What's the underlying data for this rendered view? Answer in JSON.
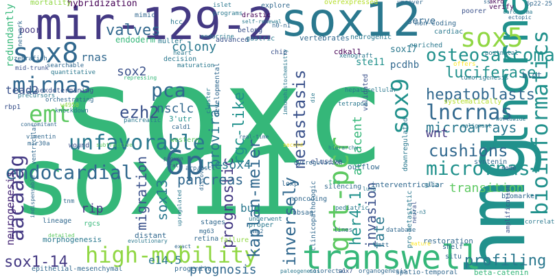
{
  "words": [
    {
      "text": "soxc",
      "color": "#35b779"
    },
    {
      "text": "sox11",
      "color": "#35b779"
    },
    {
      "text": "mir-129-2",
      "color": "#443983"
    },
    {
      "text": "sox12",
      "color": "#2a788e"
    },
    {
      "text": "hmg",
      "color": "#21918c"
    },
    {
      "text": "lncrna",
      "color": "#21918c"
    },
    {
      "text": "sox8",
      "color": "#31688e"
    },
    {
      "text": "sox5",
      "color": "#90d743"
    },
    {
      "text": "transwell",
      "color": "#35b779"
    },
    {
      "text": "high-mobility",
      "color": "#90d743"
    },
    {
      "text": "6p",
      "color": "#31688e"
    },
    {
      "text": "emt",
      "color": "#5ec962"
    },
    {
      "text": "unfavorable",
      "color": "#2a788e"
    },
    {
      "text": "aacaaag",
      "color": "#443983"
    },
    {
      "text": "mirnas",
      "color": "#31688e"
    },
    {
      "text": "osteosarcoma",
      "color": "#21918c"
    },
    {
      "text": "bioinformatics",
      "color": "#21918c"
    },
    {
      "text": "qrt-pcr",
      "color": "#5ec962"
    },
    {
      "text": "kaplan-meier",
      "color": "#31688e"
    },
    {
      "text": "lncrnas",
      "color": "#31688e"
    },
    {
      "text": "micrornas",
      "color": "#21918c"
    },
    {
      "text": "endocardial",
      "color": "#31688e"
    },
    {
      "text": "sox9",
      "color": "#21918c"
    },
    {
      "text": "metastasis",
      "color": "#3b528b"
    },
    {
      "text": "pca",
      "color": "#31688e"
    },
    {
      "text": "inversely",
      "color": "#31688e"
    },
    {
      "text": "sox1-14",
      "color": "#443983"
    },
    {
      "text": "cushions",
      "color": "#31688e"
    },
    {
      "text": "hepatoblasts",
      "color": "#31688e"
    },
    {
      "text": "ezh2",
      "color": "#3b528b"
    },
    {
      "text": "valves",
      "color": "#31688e"
    },
    {
      "text": "luciferase",
      "color": "#21918c"
    },
    {
      "text": "profiling",
      "color": "#2a788e"
    },
    {
      "text": "prognostic",
      "color": "#443983"
    },
    {
      "text": "rgc-like",
      "color": "#21918c"
    },
    {
      "text": "proviral",
      "color": "#2a788e"
    },
    {
      "text": "prognosis",
      "color": "#31688e"
    },
    {
      "text": "invasion",
      "color": "#3b528b"
    },
    {
      "text": "her4.1",
      "color": "#21918c"
    },
    {
      "text": "microarrays",
      "color": "#2a788e"
    },
    {
      "text": "pancreas",
      "color": "#31688e"
    },
    {
      "text": "migration",
      "color": "#3b528b"
    },
    {
      "text": "lncsox4",
      "color": "#2a788e"
    },
    {
      "text": "nsclc",
      "color": "#31688e"
    },
    {
      "text": "sox2",
      "color": "#3b528b"
    },
    {
      "text": "sox13",
      "color": "#2a788e"
    },
    {
      "text": "colony",
      "color": "#2a788e"
    },
    {
      "text": "fate",
      "color": "#2a788e"
    },
    {
      "text": "transition",
      "color": "#5ec962"
    },
    {
      "text": "adjacent",
      "color": "#35b779"
    },
    {
      "text": "rnas",
      "color": "#31688e"
    },
    {
      "text": "tead2",
      "color": "#3b528b"
    },
    {
      "text": "neurogenesis",
      "color": "#482878"
    },
    {
      "text": "redundantly",
      "color": "#35b779"
    },
    {
      "text": "rip",
      "color": "#443983"
    },
    {
      "text": "bud",
      "color": "#2a788e"
    },
    {
      "text": "wnt",
      "color": "#443983"
    },
    {
      "text": "ste11",
      "color": "#21918c"
    },
    {
      "text": "pcdhb",
      "color": "#31688e"
    },
    {
      "text": "sox17",
      "color": "#2a788e"
    },
    {
      "text": "serve",
      "color": "#31688e"
    },
    {
      "text": "e14.5",
      "color": "#2a788e"
    },
    {
      "text": "endoderm",
      "color": "#35b779"
    },
    {
      "text": "poor",
      "color": "#443983"
    },
    {
      "text": "hybridization",
      "color": "#440154"
    },
    {
      "text": "mortality",
      "color": "#90d743"
    },
    {
      "text": "mimic",
      "color": "#31688e"
    },
    {
      "text": "hcc",
      "color": "#2a788e"
    },
    {
      "text": "muller",
      "color": "#2a788e"
    },
    {
      "text": "heart",
      "color": "#2a788e"
    },
    {
      "text": "decision",
      "color": "#2a788e"
    },
    {
      "text": "maturation",
      "color": "#2a788e"
    },
    {
      "text": "endocrine",
      "color": "#2a788e"
    },
    {
      "text": "advanced",
      "color": "#3b528b"
    },
    {
      "text": "gastric",
      "color": "#2a788e"
    },
    {
      "text": "chip",
      "color": "#3b528b"
    },
    {
      "text": "cdkal1",
      "color": "#440154"
    },
    {
      "text": "vertebrates",
      "color": "#31688e"
    },
    {
      "text": "xenograft",
      "color": "#2a788e"
    },
    {
      "text": "neurogenic",
      "color": "#2a788e"
    },
    {
      "text": "enriched",
      "color": "#2a788e"
    },
    {
      "text": "offers",
      "color": "#fde725"
    },
    {
      "text": "tumorigenesis",
      "color": "#2a788e"
    },
    {
      "text": "postnatal",
      "color": "#2a788e"
    },
    {
      "text": "blot",
      "color": "#31688e"
    },
    {
      "text": "non-coding",
      "color": "#31688e"
    },
    {
      "text": "cardiac",
      "color": "#2a788e"
    },
    {
      "text": "uncover",
      "color": "#31688e"
    },
    {
      "text": "overexpressed",
      "color": "#b5de2b"
    },
    {
      "text": "drastic",
      "color": "#440154"
    },
    {
      "text": "programs",
      "color": "#2a788e"
    },
    {
      "text": "islet",
      "color": "#2a788e"
    },
    {
      "text": "explore",
      "color": "#31688e"
    },
    {
      "text": "n0-n1",
      "color": "#31688e"
    },
    {
      "text": "self-renewal",
      "color": "#2a788e"
    },
    {
      "text": "belong",
      "color": "#3b528b"
    },
    {
      "text": "cluster",
      "color": "#2a788e"
    },
    {
      "text": "developmental",
      "color": "#31688e"
    },
    {
      "text": "immunohistochemistry",
      "color": "#2a788e"
    },
    {
      "text": "poorer",
      "color": "#3b528b"
    },
    {
      "text": "carcinoma",
      "color": "#2a788e"
    },
    {
      "text": "ectopic",
      "color": "#31688e"
    },
    {
      "text": "verify",
      "color": "#440154"
    },
    {
      "text": "akrd",
      "color": "#440154"
    },
    {
      "text": "ss",
      "color": "#31688e"
    },
    {
      "text": "6p22-25",
      "color": "#31688e"
    },
    {
      "text": "network",
      "color": "#31688e"
    },
    {
      "text": "zebrafish",
      "color": "#31688e"
    },
    {
      "text": "searchable",
      "color": "#31688e"
    },
    {
      "text": "mid-trunk",
      "color": "#3b528b"
    },
    {
      "text": "quantitative",
      "color": "#2a788e"
    },
    {
      "text": "repressing",
      "color": "#35b779"
    },
    {
      "text": "sexdetermining",
      "color": "#3b528b"
    },
    {
      "text": "precursors",
      "color": "#2a788e"
    },
    {
      "text": "orchestrating",
      "color": "#31688e"
    },
    {
      "text": "rbp1",
      "color": "#3b528b"
    },
    {
      "text": "knockdown",
      "color": "#2a788e"
    },
    {
      "text": "w4950",
      "color": "#90d743"
    },
    {
      "text": "concomitant",
      "color": "#31688e"
    },
    {
      "text": "vimentin",
      "color": "#31688e"
    },
    {
      "text": "mir30a",
      "color": "#31688e"
    },
    {
      "text": "ventricular",
      "color": "#31688e"
    },
    {
      "text": "wound",
      "color": "#3b528b"
    },
    {
      "text": "pancreatic",
      "color": "#2a788e"
    },
    {
      "text": "3'utr",
      "color": "#21918c"
    },
    {
      "text": "cald1",
      "color": "#31688e"
    },
    {
      "text": "western",
      "color": "#5ec962"
    },
    {
      "text": "arp/ascl",
      "color": "#31688e"
    },
    {
      "text": "subtractive",
      "color": "#5ec962"
    },
    {
      "text": "proven",
      "color": "#3b528b"
    },
    {
      "text": "rate",
      "color": "#3b528b"
    },
    {
      "text": "discover",
      "color": "#31688e"
    },
    {
      "text": "stages",
      "color": "#31688e"
    },
    {
      "text": "mg63",
      "color": "#31688e"
    },
    {
      "text": "upregulated",
      "color": "#2a788e"
    },
    {
      "text": "retina",
      "color": "#31688e"
    },
    {
      "text": "failure",
      "color": "#90d743"
    },
    {
      "text": "distant",
      "color": "#31688e"
    },
    {
      "text": "evolutionary",
      "color": "#2a788e"
    },
    {
      "text": "exact",
      "color": "#31688e"
    },
    {
      "text": "progenitor",
      "color": "#31688e"
    },
    {
      "text": "lineage",
      "color": "#31688e"
    },
    {
      "text": "rgcs",
      "color": "#35b779"
    },
    {
      "text": "tnm",
      "color": "#31688e"
    },
    {
      "text": "indispensable",
      "color": "#31688e"
    },
    {
      "text": "detailed",
      "color": "#5ec962"
    },
    {
      "text": "morphogenesis",
      "color": "#2a788e"
    },
    {
      "text": "epithelial-mesenchymal",
      "color": "#31688e"
    },
    {
      "text": "elusive",
      "color": "#3b528b"
    },
    {
      "text": "dysregulation",
      "color": "#31688e"
    },
    {
      "text": "downregulated",
      "color": "#2a788e"
    },
    {
      "text": "validated",
      "color": "#3b528b"
    },
    {
      "text": "tetrapod",
      "color": "#2a788e"
    },
    {
      "text": "hepatocellular",
      "color": "#2a788e"
    },
    {
      "text": "die",
      "color": "#2a788e"
    },
    {
      "text": "outflow",
      "color": "#31688e"
    },
    {
      "text": "silencing",
      "color": "#31688e"
    },
    {
      "text": "hierarchy",
      "color": "#2a788e"
    },
    {
      "text": "interventricular",
      "color": "#31688e"
    },
    {
      "text": "syntenin",
      "color": "#31688e"
    },
    {
      "text": "node",
      "color": "#3b528b"
    },
    {
      "text": "glia",
      "color": "#2a788e"
    },
    {
      "text": "tfs",
      "color": "#35b779"
    },
    {
      "text": "lung",
      "color": "#2a788e"
    },
    {
      "text": "noncoding",
      "color": "#31688e"
    },
    {
      "text": "loxp",
      "color": "#31688e"
    },
    {
      "text": "hbsag",
      "color": "#31688e"
    },
    {
      "text": "clinicopathologic",
      "color": "#31688e"
    },
    {
      "text": "lines",
      "color": "#31688e"
    },
    {
      "text": "mtt",
      "color": "#31688e"
    },
    {
      "text": "biomarker",
      "color": "#31688e"
    },
    {
      "text": "amplification",
      "color": "#3b528b"
    },
    {
      "text": "correlated",
      "color": "#2a788e"
    },
    {
      "text": "restoration",
      "color": "#31688e"
    },
    {
      "text": "situ",
      "color": "#31688e"
    },
    {
      "text": "shelf",
      "color": "#31688e"
    },
    {
      "text": "pro-metastatic",
      "color": "#2a788e"
    },
    {
      "text": "beta-catenin",
      "color": "#35b779"
    },
    {
      "text": "spatio-temporal",
      "color": "#31688e"
    },
    {
      "text": "organogenesis",
      "color": "#31688e"
    },
    {
      "text": "sox7",
      "color": "#3b528b"
    },
    {
      "text": "colorectal",
      "color": "#31688e"
    },
    {
      "text": "paleogenesis",
      "color": "#2a788e"
    },
    {
      "text": "database",
      "color": "#31688e"
    },
    {
      "text": "mature",
      "color": "#fde725"
    },
    {
      "text": "worldwide",
      "color": "#2a788e"
    },
    {
      "text": "malignant",
      "color": "#2a788e"
    },
    {
      "text": "systematically",
      "color": "#b5de2b"
    },
    {
      "text": "n2-n3",
      "color": "#2a788e"
    },
    {
      "text": "mmp2",
      "color": "#31688e"
    },
    {
      "text": "underwent",
      "color": "#2a788e"
    },
    {
      "text": "proper",
      "color": "#2a788e"
    },
    {
      "text": "real-time",
      "color": "#31688e"
    },
    {
      "text": "neural",
      "color": "#3b528b"
    },
    {
      "text": "pediatric",
      "color": "#2a788e"
    },
    {
      "text": "second",
      "color": "#fde725"
    }
  ]
}
